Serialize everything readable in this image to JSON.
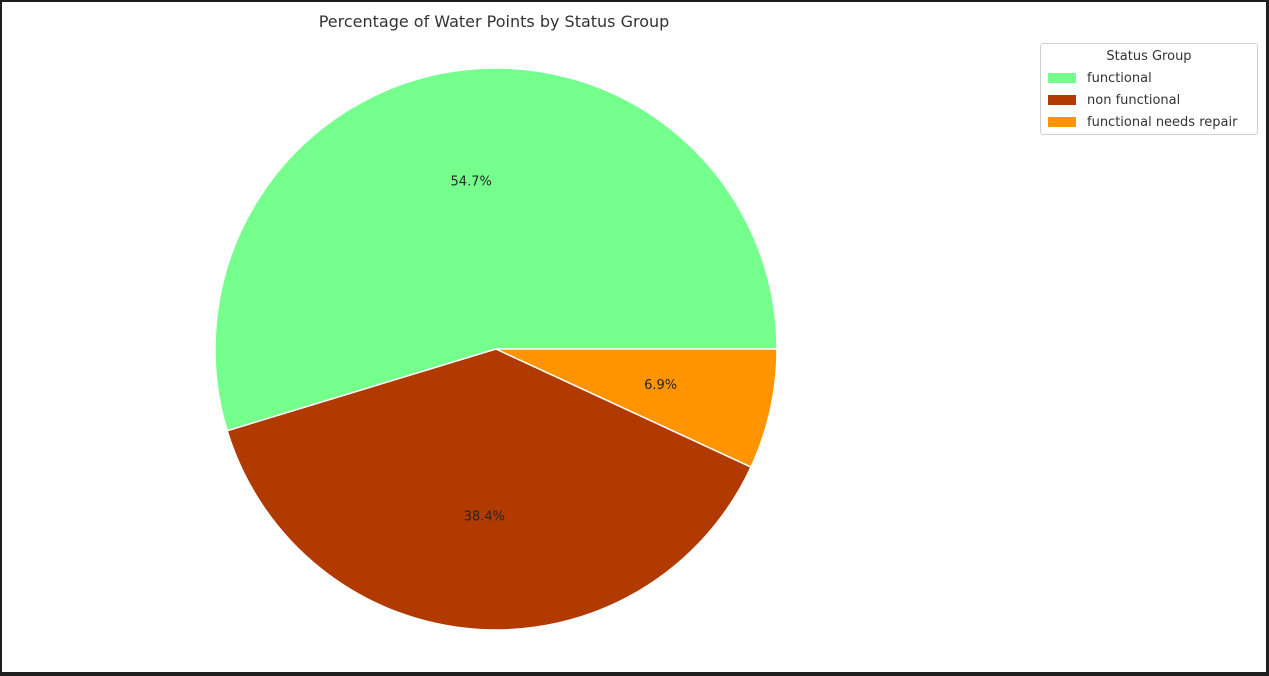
{
  "chart_data": {
    "type": "pie",
    "title": "Percentage of Water Points by Status Group",
    "legend_title": "Status Group",
    "legend_position": "top-right",
    "start_angle_deg": 0,
    "direction": "counterclockwise",
    "slices": [
      {
        "label": "functional",
        "value": 54.7,
        "display": "54.7%",
        "color": "#75ff8c"
      },
      {
        "label": "non functional",
        "value": 38.4,
        "display": "38.4%",
        "color": "#b03a00"
      },
      {
        "label": "functional needs repair",
        "value": 6.9,
        "display": "6.9%",
        "color": "#ff9400"
      }
    ]
  }
}
